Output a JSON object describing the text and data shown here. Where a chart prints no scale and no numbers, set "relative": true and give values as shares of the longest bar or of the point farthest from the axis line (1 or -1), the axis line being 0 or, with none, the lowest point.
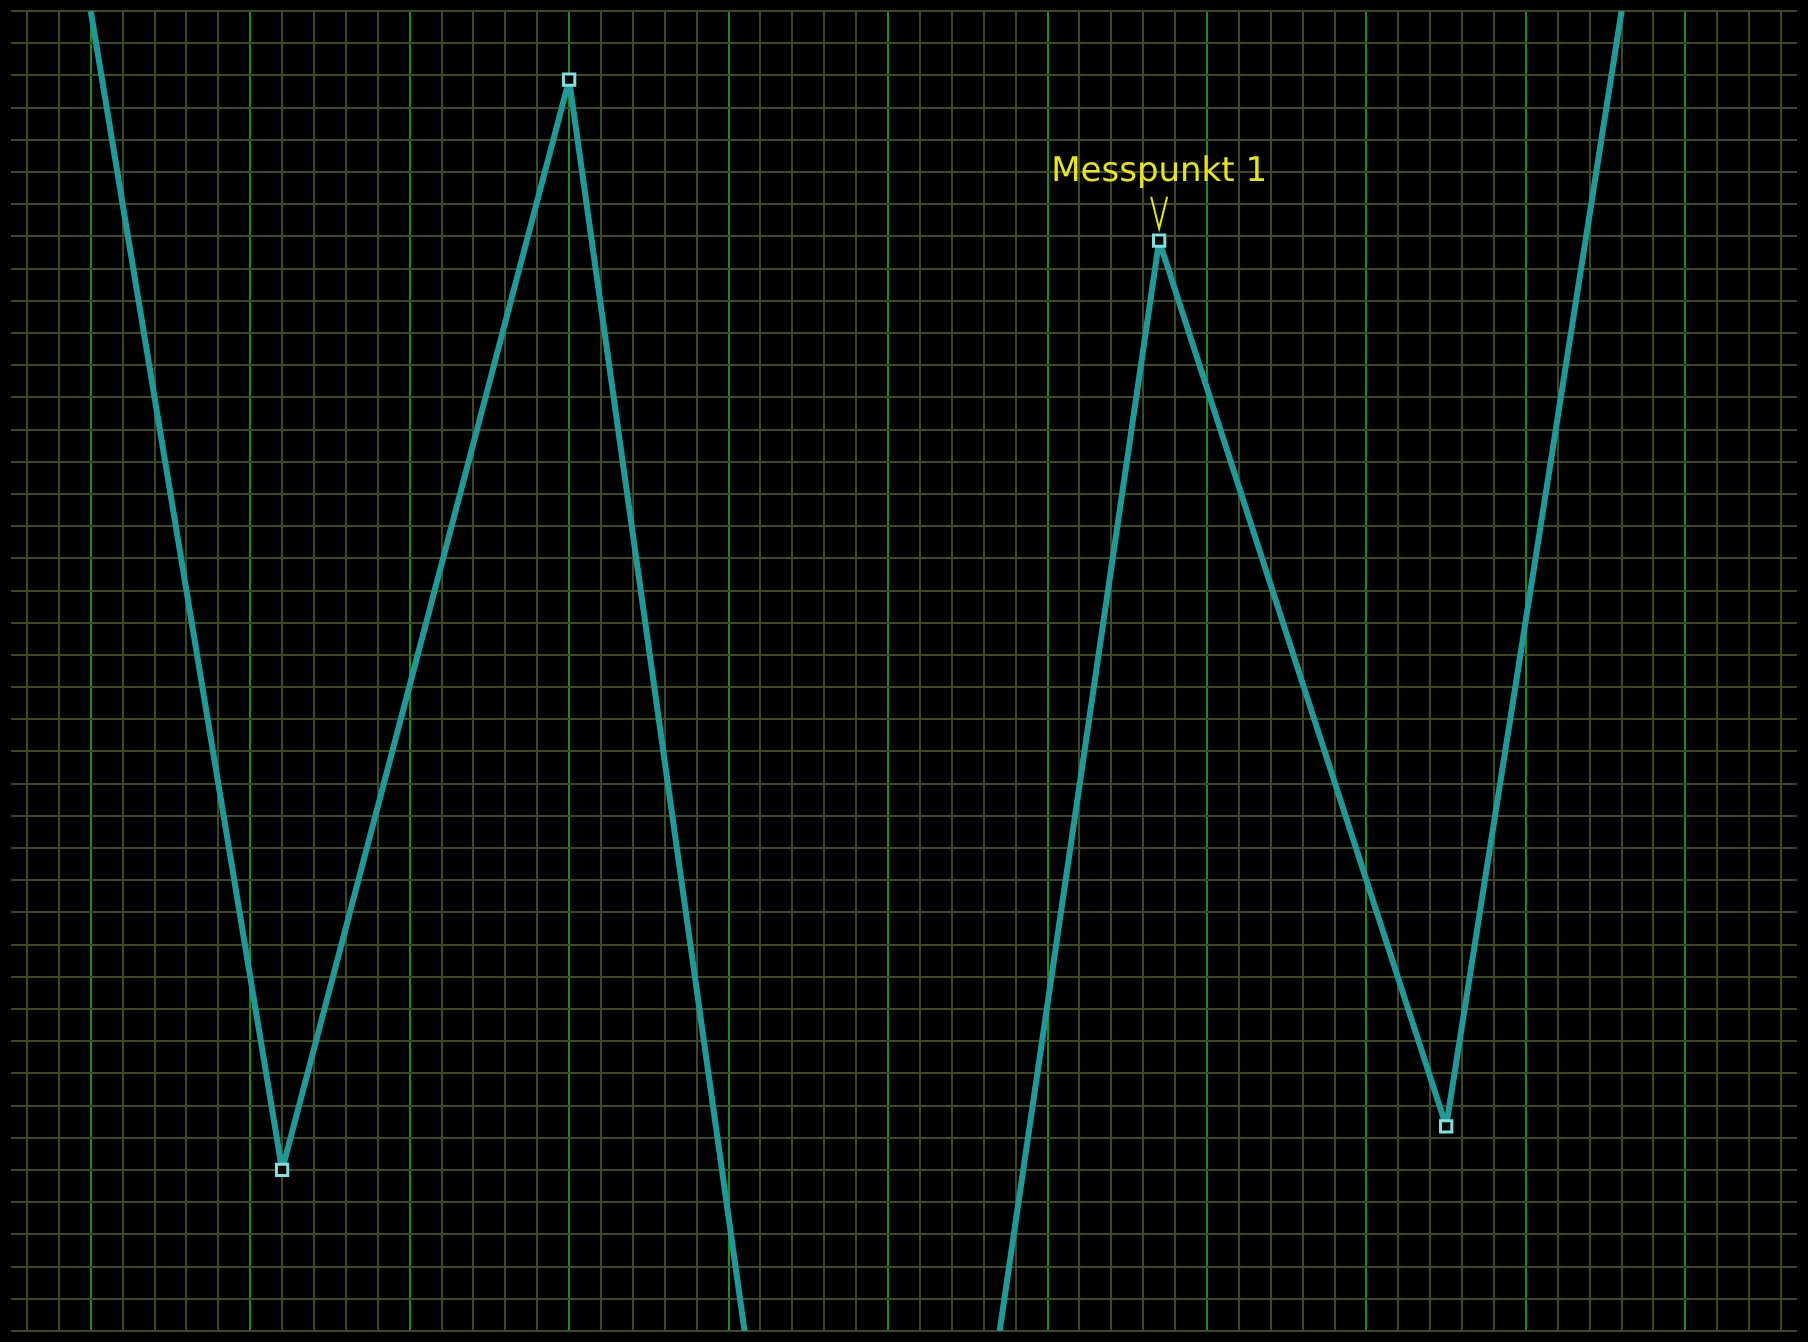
{
  "chart_data": {
    "type": "line",
    "relative": true,
    "categories": [
      null,
      null,
      null,
      null,
      null,
      null,
      null,
      null,
      null,
      null,
      null,
      null,
      null,
      null,
      null,
      null,
      null,
      null,
      null,
      null,
      null,
      null,
      null,
      null,
      null,
      null,
      null,
      null,
      null,
      null,
      null,
      null,
      null,
      null,
      null,
      null,
      null,
      null,
      null,
      null,
      null,
      null,
      null,
      null,
      null,
      null,
      null,
      null,
      null,
      null,
      null,
      null,
      null,
      null,
      null,
      null,
      null,
      null,
      null,
      null,
      null,
      null,
      null,
      null,
      null,
      null,
      null,
      null,
      null,
      null,
      null,
      null,
      null,
      null,
      null,
      null,
      null,
      null,
      null,
      null,
      null,
      null,
      null,
      null,
      null,
      null,
      null,
      null,
      null,
      null,
      null,
      null,
      null,
      null,
      null,
      null,
      null,
      null,
      null,
      null,
      null,
      null,
      null,
      null,
      null,
      null,
      null,
      null,
      null,
      null,
      null,
      null,
      null
    ],
    "series": [
      {
        "color": "#1e9a9a",
        "values": [
          null,
          null,
          null,
          null,
          null,
          1,
          null,
          null,
          null,
          null,
          null,
          null,
          null,
          null,
          null,
          null,
          null,
          0.122,
          null,
          null,
          null,
          null,
          null,
          null,
          null,
          null,
          null,
          null,
          null,
          null,
          null,
          null,
          null,
          null,
          null,
          0.948,
          null,
          null,
          null,
          null,
          null,
          null,
          null,
          null,
          null,
          null,
          0,
          null,
          null,
          null,
          null,
          null,
          null,
          null,
          null,
          null,
          null,
          null,
          null,
          null,
          null,
          null,
          null,
          null,
          null,
          null,
          null,
          null,
          null,
          null,
          null,
          null,
          null,
          null,
          null,
          null,
          null,
          null,
          null,
          null,
          null,
          null,
          null,
          null,
          null,
          null,
          null,
          null,
          null,
          null,
          null,
          null,
          null,
          null,
          null,
          null,
          null,
          null,
          null,
          null,
          null,
          null,
          null,
          null,
          null,
          null,
          null,
          null,
          null,
          null,
          null,
          null,
          null
        ]
      },
      {
        "color": "#1e9a9a",
        "values": [
          null,
          null,
          null,
          null,
          null,
          null,
          null,
          null,
          null,
          null,
          null,
          null,
          null,
          null,
          null,
          null,
          null,
          null,
          null,
          null,
          null,
          null,
          null,
          null,
          null,
          null,
          null,
          null,
          null,
          null,
          null,
          null,
          null,
          null,
          null,
          null,
          null,
          null,
          null,
          null,
          null,
          null,
          null,
          null,
          null,
          null,
          null,
          null,
          null,
          null,
          null,
          null,
          null,
          null,
          null,
          null,
          null,
          null,
          null,
          null,
          null,
          null,
          0,
          null,
          null,
          null,
          null,
          null,
          null,
          null,
          null,
          null,
          0.826,
          null,
          null,
          null,
          null,
          null,
          null,
          null,
          null,
          null,
          null,
          null,
          null,
          null,
          null,
          null,
          null,
          null,
          0.155,
          null,
          null,
          null,
          null,
          null,
          null,
          null,
          null,
          null,
          null,
          1,
          null,
          null,
          null,
          null,
          null,
          null,
          null,
          null,
          null,
          null,
          null
        ]
      }
    ],
    "marker": "square",
    "grid": true,
    "legend": false,
    "tick_labels": false,
    "annotations": [
      {
        "text": "Messpunkt 1",
        "y": 0.826
      }
    ]
  }
}
